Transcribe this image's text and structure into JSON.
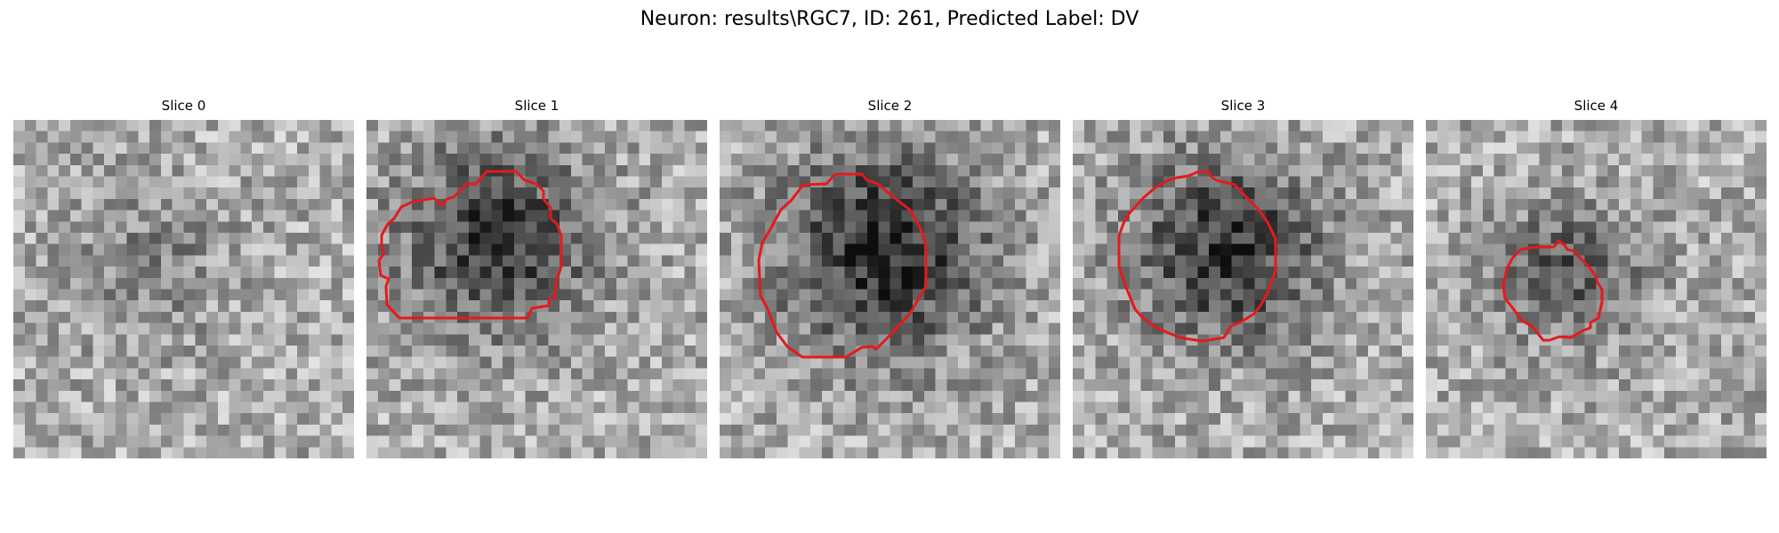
{
  "figure": {
    "title": "Neuron: results\\RGC7, ID: 261, Predicted Label: DV"
  },
  "contour_color": "#e41a1c",
  "colormap": "gray",
  "slices": [
    {
      "label": "Slice 0",
      "has_contour": false,
      "blob_strength": 0.3
    },
    {
      "label": "Slice 1",
      "has_contour": true,
      "blob_strength": 0.85
    },
    {
      "label": "Slice 2",
      "has_contour": true,
      "blob_strength": 0.95
    },
    {
      "label": "Slice 3",
      "has_contour": true,
      "blob_strength": 0.85
    },
    {
      "label": "Slice 4",
      "has_contour": true,
      "blob_strength": 0.6
    }
  ]
}
